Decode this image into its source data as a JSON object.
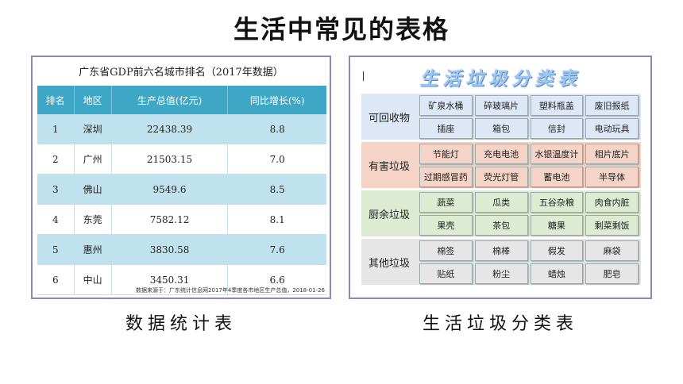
{
  "page_title": "生活中常见的表格",
  "gdp_panel": {
    "title": "广东省GDP前六名城市排名（2017年数据）",
    "headers": [
      "排名",
      "地区",
      "生产总值(亿元)",
      "同比增长(%)"
    ],
    "rows": [
      [
        "1",
        "深圳",
        "22438.39",
        "8.8"
      ],
      [
        "2",
        "广州",
        "21503.15",
        "7.0"
      ],
      [
        "3",
        "佛山",
        "9549.6",
        "8.5"
      ],
      [
        "4",
        "东莞",
        "7582.12",
        "8.1"
      ],
      [
        "5",
        "惠州",
        "3830.58",
        "7.6"
      ],
      [
        "6",
        "中山",
        "3450.31",
        "6.6"
      ]
    ],
    "source": "数据来源于：广东统计信息网2017年4季度各市地区生产总值，2018-01-26",
    "caption": "数据统计表",
    "colors": {
      "header": "#3fa7c6",
      "stripe": "#bfe2ee"
    }
  },
  "waste_panel": {
    "title": "生活垃圾分类表",
    "categories": [
      {
        "name": "可回收物",
        "color": "#dde7f5",
        "items": [
          "矿泉水桶",
          "碎玻璃片",
          "塑料瓶盖",
          "废旧报纸",
          "插座",
          "箱包",
          "信封",
          "电动玩具"
        ]
      },
      {
        "name": "有害垃圾",
        "color": "#f5d3c6",
        "items": [
          "节能灯",
          "充电电池",
          "水银温度计",
          "相片底片",
          "过期感冒药",
          "荧光灯管",
          "蓄电池",
          "半导体"
        ]
      },
      {
        "name": "厨余垃圾",
        "color": "#dcebd2",
        "items": [
          "蔬菜",
          "瓜类",
          "五谷杂粮",
          "肉食内脏",
          "果壳",
          "茶包",
          "糖果",
          "剩菜剩饭"
        ]
      },
      {
        "name": "其他垃圾",
        "color": "#e6e6e6",
        "items": [
          "棉签",
          "棉棒",
          "假发",
          "麻袋",
          "贴纸",
          "粉尘",
          "蜡烛",
          "肥皂"
        ]
      }
    ],
    "caption": "生活垃圾分类表"
  }
}
